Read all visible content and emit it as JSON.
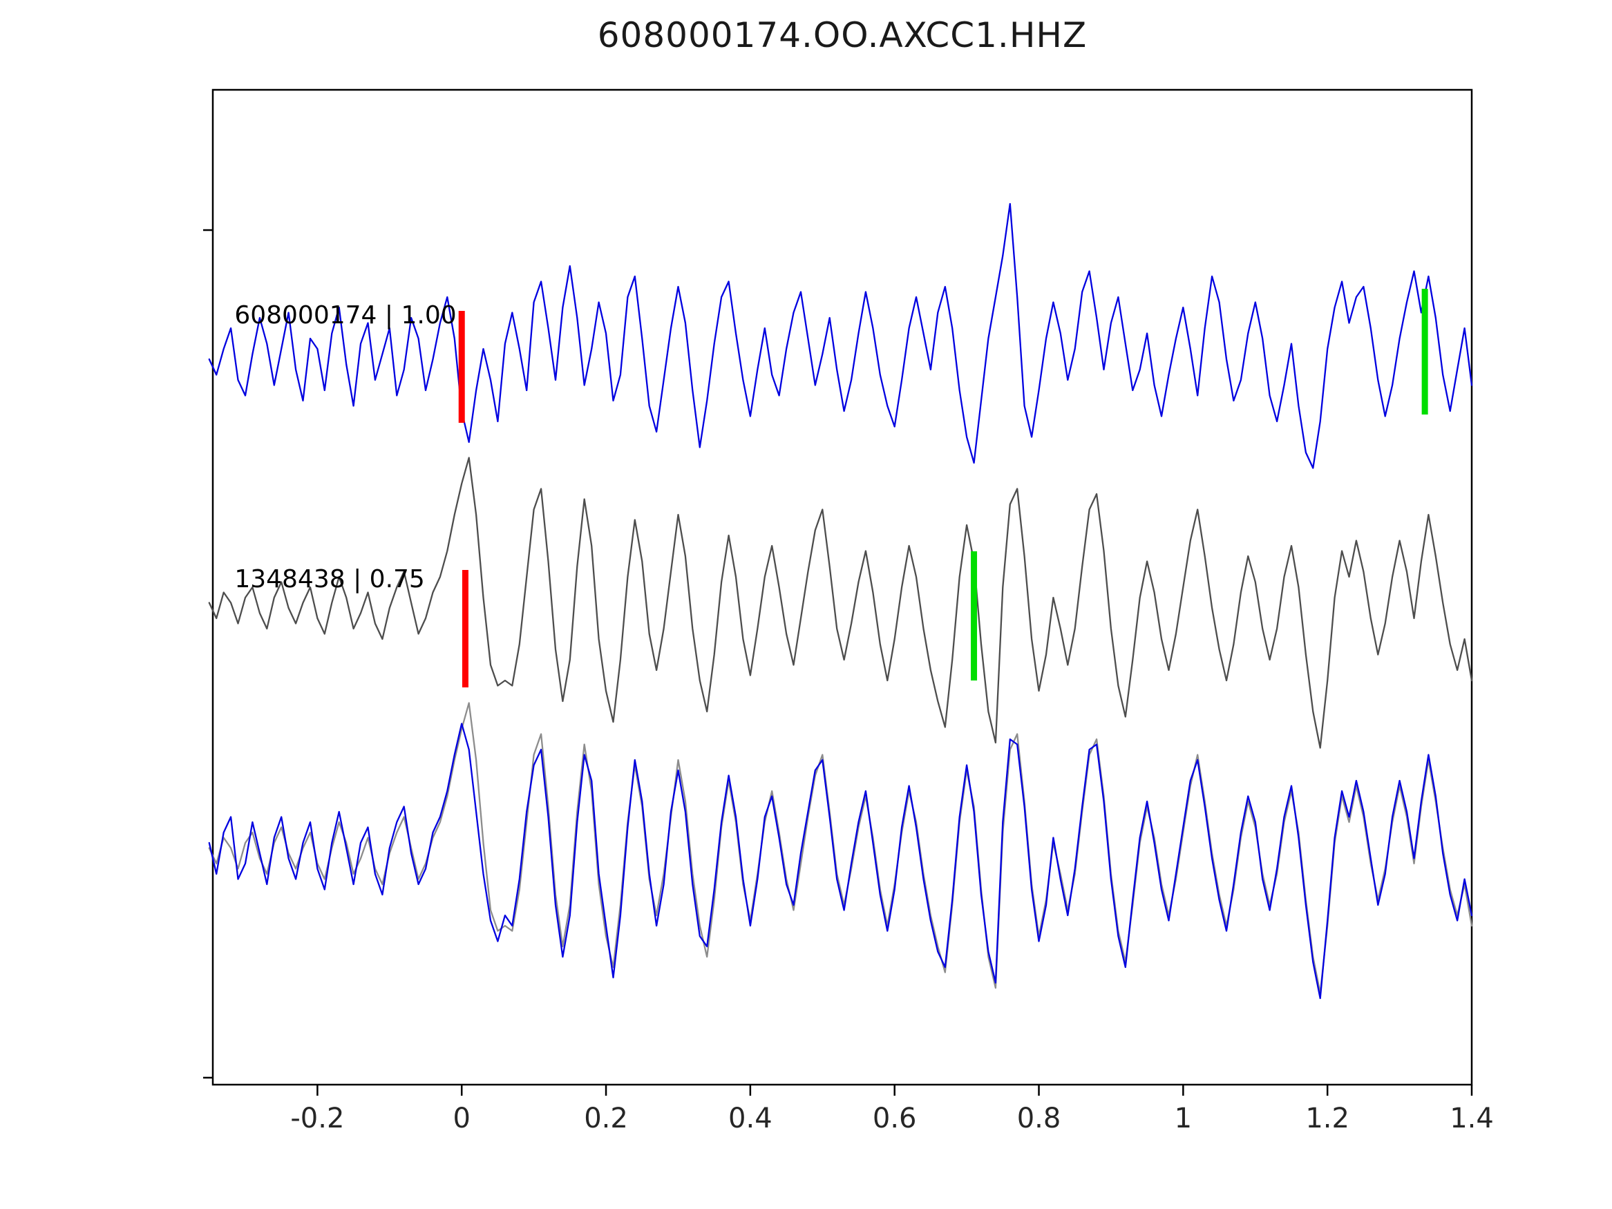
{
  "title": "608000174.OO.AXCC1.HHZ",
  "chart_data": {
    "type": "line",
    "title": "608000174.OO.AXCC1.HHZ",
    "xlabel": "",
    "ylabel": "",
    "grid": false,
    "legend": "none",
    "xlim": [
      -0.345,
      1.4
    ],
    "x_start": -0.35,
    "dx": 0.01,
    "x_ticks": [
      {
        "value": -0.2,
        "label": "-0.2"
      },
      {
        "value": 0,
        "label": "0"
      },
      {
        "value": 0.2,
        "label": "0.2"
      },
      {
        "value": 0.4,
        "label": "0.4"
      },
      {
        "value": 0.6,
        "label": "0.6"
      },
      {
        "value": 0.8,
        "label": "0.8"
      },
      {
        "value": 1,
        "label": "1"
      },
      {
        "value": 1.2,
        "label": "1.2"
      },
      {
        "value": 1.4,
        "label": "1.4"
      }
    ],
    "labels": [
      {
        "panel": 0,
        "text": "608000174 | 1.00",
        "x": -0.315,
        "dy": -52
      },
      {
        "panel": 1,
        "text": "1348438 | 0.75",
        "x": -0.315,
        "dy": -30
      }
    ],
    "markers": [
      {
        "name": "pick-marker-red-top",
        "panel": 0,
        "x": 0.0,
        "color": "#ff0000",
        "y1": -70,
        "y2": 92
      },
      {
        "name": "pick-marker-green-top",
        "panel": 0,
        "x": 1.335,
        "color": "#00dd00",
        "y1": -102,
        "y2": 80
      },
      {
        "name": "pick-marker-red-middle",
        "panel": 1,
        "x": 0.005,
        "color": "#ff0000",
        "y1": -55,
        "y2": 115
      },
      {
        "name": "pick-marker-green-middle",
        "panel": 1,
        "x": 0.71,
        "color": "#00dd00",
        "y1": -82,
        "y2": 105
      }
    ],
    "series": [
      {
        "name": "template-608000174",
        "panel": 0,
        "color": "#0000e0",
        "values": [
          0.0,
          -0.15,
          0.1,
          0.3,
          -0.2,
          -0.35,
          0.05,
          0.4,
          0.15,
          -0.25,
          0.1,
          0.45,
          -0.1,
          -0.4,
          0.2,
          0.1,
          -0.3,
          0.25,
          0.5,
          -0.05,
          -0.45,
          0.15,
          0.35,
          -0.2,
          0.05,
          0.3,
          -0.35,
          -0.1,
          0.4,
          0.2,
          -0.3,
          0.0,
          0.35,
          0.6,
          0.2,
          -0.5,
          -0.8,
          -0.3,
          0.1,
          -0.2,
          -0.6,
          0.15,
          0.45,
          0.1,
          -0.3,
          0.55,
          0.75,
          0.3,
          -0.2,
          0.5,
          0.9,
          0.4,
          -0.25,
          0.1,
          0.55,
          0.25,
          -0.4,
          -0.15,
          0.6,
          0.8,
          0.2,
          -0.45,
          -0.7,
          -0.2,
          0.3,
          0.7,
          0.35,
          -0.3,
          -0.85,
          -0.4,
          0.15,
          0.6,
          0.75,
          0.25,
          -0.2,
          -0.55,
          -0.1,
          0.3,
          -0.15,
          -0.35,
          0.1,
          0.45,
          0.65,
          0.2,
          -0.25,
          0.05,
          0.4,
          -0.1,
          -0.5,
          -0.2,
          0.25,
          0.65,
          0.3,
          -0.15,
          -0.45,
          -0.65,
          -0.2,
          0.3,
          0.6,
          0.25,
          -0.1,
          0.45,
          0.7,
          0.3,
          -0.3,
          -0.75,
          -1.0,
          -0.4,
          0.2,
          0.6,
          1.0,
          1.5,
          0.6,
          -0.45,
          -0.75,
          -0.3,
          0.2,
          0.55,
          0.25,
          -0.2,
          0.1,
          0.65,
          0.85,
          0.4,
          -0.1,
          0.35,
          0.6,
          0.15,
          -0.3,
          -0.1,
          0.25,
          -0.25,
          -0.55,
          -0.15,
          0.2,
          0.5,
          0.1,
          -0.35,
          0.3,
          0.8,
          0.55,
          0.0,
          -0.4,
          -0.2,
          0.25,
          0.55,
          0.2,
          -0.35,
          -0.6,
          -0.25,
          0.15,
          -0.45,
          -0.9,
          -1.05,
          -0.6,
          0.1,
          0.5,
          0.75,
          0.35,
          0.6,
          0.7,
          0.3,
          -0.2,
          -0.55,
          -0.25,
          0.2,
          0.55,
          0.85,
          0.45,
          0.8,
          0.4,
          -0.15,
          -0.5,
          -0.1,
          0.3,
          -0.25
        ]
      },
      {
        "name": "detection-1348438",
        "panel": 1,
        "color": "#4d4d4d",
        "values": [
          0.05,
          -0.1,
          0.15,
          0.05,
          -0.15,
          0.1,
          0.2,
          -0.05,
          -0.2,
          0.1,
          0.25,
          0.0,
          -0.15,
          0.05,
          0.2,
          -0.1,
          -0.25,
          0.05,
          0.3,
          0.1,
          -0.2,
          -0.05,
          0.15,
          -0.15,
          -0.3,
          0.0,
          0.2,
          0.35,
          0.05,
          -0.25,
          -0.1,
          0.15,
          0.3,
          0.55,
          0.9,
          1.2,
          1.45,
          0.9,
          0.1,
          -0.55,
          -0.75,
          -0.7,
          -0.75,
          -0.35,
          0.3,
          0.95,
          1.15,
          0.45,
          -0.4,
          -0.9,
          -0.5,
          0.4,
          1.05,
          0.6,
          -0.3,
          -0.8,
          -1.1,
          -0.5,
          0.3,
          0.85,
          0.45,
          -0.25,
          -0.6,
          -0.2,
          0.35,
          0.9,
          0.5,
          -0.2,
          -0.7,
          -1.0,
          -0.45,
          0.25,
          0.7,
          0.3,
          -0.3,
          -0.65,
          -0.2,
          0.3,
          0.6,
          0.2,
          -0.25,
          -0.55,
          -0.1,
          0.35,
          0.75,
          0.95,
          0.4,
          -0.2,
          -0.5,
          -0.15,
          0.25,
          0.55,
          0.15,
          -0.35,
          -0.7,
          -0.3,
          0.2,
          0.6,
          0.3,
          -0.2,
          -0.6,
          -0.9,
          -1.15,
          -0.5,
          0.3,
          0.8,
          0.45,
          -0.35,
          -1.0,
          -1.3,
          0.2,
          1.0,
          1.15,
          0.5,
          -0.3,
          -0.8,
          -0.45,
          0.1,
          -0.2,
          -0.55,
          -0.2,
          0.4,
          0.95,
          1.1,
          0.55,
          -0.2,
          -0.75,
          -1.05,
          -0.5,
          0.1,
          0.45,
          0.15,
          -0.3,
          -0.6,
          -0.25,
          0.2,
          0.65,
          0.95,
          0.5,
          0.0,
          -0.4,
          -0.7,
          -0.35,
          0.15,
          0.5,
          0.25,
          -0.2,
          -0.5,
          -0.2,
          0.3,
          0.6,
          0.2,
          -0.45,
          -1.0,
          -1.35,
          -0.7,
          0.1,
          0.55,
          0.3,
          0.65,
          0.35,
          -0.1,
          -0.45,
          -0.15,
          0.3,
          0.65,
          0.35,
          -0.1,
          0.45,
          0.9,
          0.5,
          0.05,
          -0.35,
          -0.6,
          -0.3,
          -0.7
        ]
      },
      {
        "name": "overlay-detection-gray",
        "panel": 2,
        "color": "#8c8c8c",
        "values_from": 1
      },
      {
        "name": "overlay-template-blue",
        "panel": 2,
        "color": "#0000e0",
        "values": [
          0.1,
          -0.2,
          0.2,
          0.35,
          -0.25,
          -0.1,
          0.3,
          0.0,
          -0.3,
          0.15,
          0.35,
          -0.05,
          -0.25,
          0.1,
          0.3,
          -0.15,
          -0.35,
          0.1,
          0.4,
          0.05,
          -0.3,
          0.1,
          0.25,
          -0.2,
          -0.4,
          0.05,
          0.3,
          0.45,
          0.0,
          -0.3,
          -0.15,
          0.2,
          0.35,
          0.6,
          0.95,
          1.25,
          1.0,
          0.4,
          -0.2,
          -0.65,
          -0.85,
          -0.6,
          -0.7,
          -0.25,
          0.4,
          0.85,
          1.0,
          0.35,
          -0.5,
          -1.0,
          -0.6,
          0.3,
          0.95,
          0.7,
          -0.2,
          -0.7,
          -1.2,
          -0.6,
          0.25,
          0.9,
          0.5,
          -0.2,
          -0.7,
          -0.3,
          0.4,
          0.8,
          0.4,
          -0.3,
          -0.8,
          -0.9,
          -0.35,
          0.3,
          0.75,
          0.35,
          -0.25,
          -0.7,
          -0.25,
          0.35,
          0.55,
          0.15,
          -0.3,
          -0.5,
          0.0,
          0.4,
          0.8,
          0.9,
          0.35,
          -0.25,
          -0.55,
          -0.1,
          0.3,
          0.6,
          0.1,
          -0.4,
          -0.75,
          -0.35,
          0.25,
          0.65,
          0.25,
          -0.25,
          -0.65,
          -0.95,
          -1.1,
          -0.45,
          0.35,
          0.85,
          0.4,
          -0.4,
          -0.95,
          -1.25,
          0.3,
          1.1,
          1.05,
          0.45,
          -0.35,
          -0.85,
          -0.5,
          0.15,
          -0.25,
          -0.6,
          -0.15,
          0.45,
          1.0,
          1.05,
          0.5,
          -0.25,
          -0.8,
          -1.1,
          -0.45,
          0.15,
          0.5,
          0.1,
          -0.35,
          -0.65,
          -0.2,
          0.25,
          0.7,
          0.9,
          0.45,
          -0.05,
          -0.45,
          -0.75,
          -0.3,
          0.2,
          0.55,
          0.3,
          -0.25,
          -0.55,
          -0.15,
          0.35,
          0.65,
          0.15,
          -0.5,
          -1.05,
          -1.4,
          -0.65,
          0.15,
          0.6,
          0.35,
          0.7,
          0.4,
          -0.05,
          -0.5,
          -0.2,
          0.35,
          0.7,
          0.4,
          -0.05,
          0.5,
          0.95,
          0.55,
          0.0,
          -0.4,
          -0.65,
          -0.25,
          -0.6
        ]
      }
    ]
  }
}
